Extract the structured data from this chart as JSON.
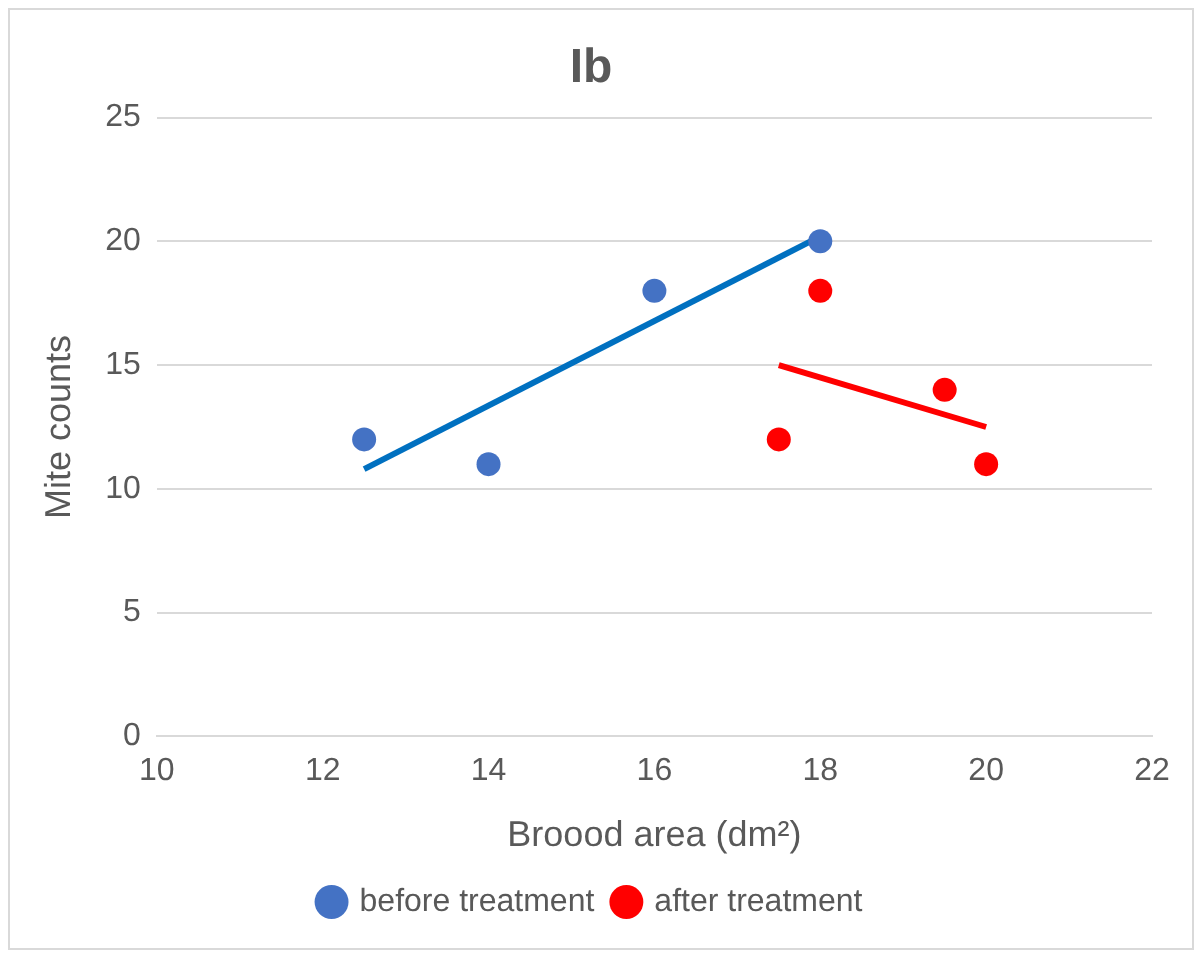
{
  "chart_data": {
    "type": "scatter",
    "title": "Ib",
    "xlabel": "Broood area (dm²)",
    "ylabel": "Mite counts",
    "xlim": [
      10,
      22
    ],
    "xticks": [
      10,
      12,
      14,
      16,
      18,
      20,
      22
    ],
    "ylim": [
      0,
      25
    ],
    "yticks": [
      0,
      5,
      10,
      15,
      20,
      25
    ],
    "grid": "y",
    "legend": "bottom",
    "marker": "circle",
    "series": [
      {
        "name": "before treatment",
        "color": "#4472c4",
        "x": [
          12.5,
          14,
          16,
          18
        ],
        "values": [
          12,
          11,
          18,
          20
        ]
      },
      {
        "name": "after treatment",
        "color": "#ff0000",
        "x": [
          17.5,
          18,
          19.5,
          20
        ],
        "values": [
          12,
          18,
          14,
          11
        ]
      },
      {
        "type": "line",
        "color": "#0070c0",
        "x": [
          12.5,
          18
        ],
        "values": [
          10.8,
          20.2
        ],
        "marker": "none"
      },
      {
        "type": "line",
        "color": "#ff0000",
        "x": [
          17.5,
          20
        ],
        "values": [
          15,
          12.5
        ],
        "marker": "none"
      }
    ]
  }
}
